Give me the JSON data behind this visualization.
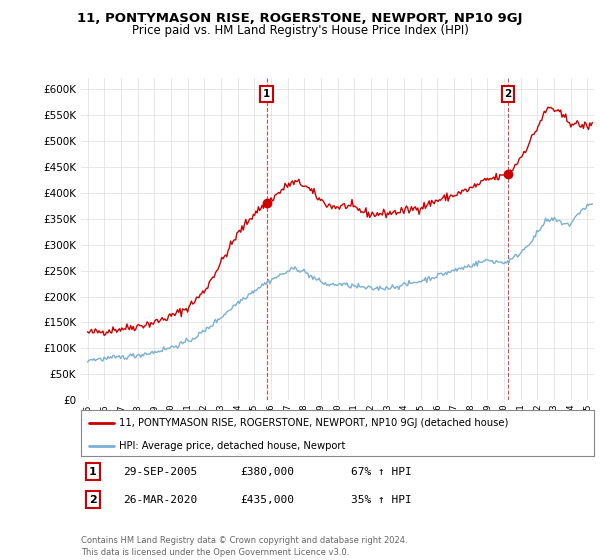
{
  "title": "11, PONTYMASON RISE, ROGERSTONE, NEWPORT, NP10 9GJ",
  "subtitle": "Price paid vs. HM Land Registry's House Price Index (HPI)",
  "ylim": [
    0,
    620000
  ],
  "yticks": [
    0,
    50000,
    100000,
    150000,
    200000,
    250000,
    300000,
    350000,
    400000,
    450000,
    500000,
    550000,
    600000
  ],
  "xlim_start": 1994.6,
  "xlim_end": 2025.4,
  "sale1_x": 2005.75,
  "sale1_y": 380000,
  "sale1_label": "1",
  "sale2_x": 2020.25,
  "sale2_y": 435000,
  "sale2_label": "2",
  "red_line_color": "#cc0000",
  "blue_line_color": "#7ab0d4",
  "legend_entry1": "11, PONTYMASON RISE, ROGERSTONE, NEWPORT, NP10 9GJ (detached house)",
  "legend_entry2": "HPI: Average price, detached house, Newport",
  "footer": "Contains HM Land Registry data © Crown copyright and database right 2024.\nThis data is licensed under the Open Government Licence v3.0.",
  "background_color": "#ffffff",
  "grid_color": "#dddddd",
  "ann1_num": "1",
  "ann1_date": "29-SEP-2005",
  "ann1_price": "£380,000",
  "ann1_pct": "67% ↑ HPI",
  "ann2_num": "2",
  "ann2_date": "26-MAR-2020",
  "ann2_price": "£435,000",
  "ann2_pct": "35% ↑ HPI"
}
